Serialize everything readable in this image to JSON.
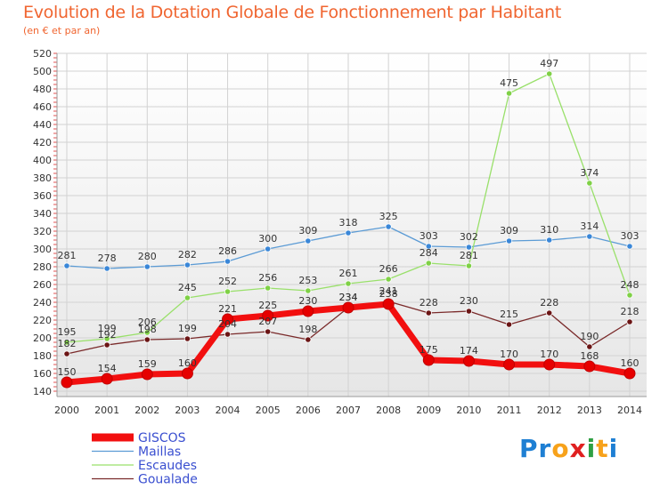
{
  "header": {
    "title": "Evolution de la Dotation Globale de Fonctionnement par Habitant",
    "subtitle": "(en € et par an)"
  },
  "logo": {
    "text": "Proxiti",
    "letters": [
      "P",
      "r",
      "o",
      "x",
      "i",
      "t",
      "i"
    ],
    "letter_colors": [
      "#1e7fd3",
      "#1e7fd3",
      "#f7a21b",
      "#e02020",
      "#2ea043",
      "#f7a21b",
      "#1e7fd3"
    ]
  },
  "chart_data": {
    "type": "line",
    "x": [
      "2000",
      "2001",
      "2002",
      "2003",
      "2004",
      "2005",
      "2006",
      "2007",
      "2008",
      "2009",
      "2010",
      "2011",
      "2012",
      "2013",
      "2014"
    ],
    "ylim": [
      140,
      520
    ],
    "yticks": [
      140,
      160,
      180,
      200,
      220,
      240,
      260,
      280,
      300,
      320,
      340,
      360,
      380,
      400,
      420,
      440,
      460,
      480,
      500,
      520
    ],
    "grid": true,
    "legend_position": "bottom-left",
    "series": [
      {
        "name": "Maillas",
        "color": "#5b9bd5",
        "marker": "#3a87d8",
        "values": [
          281,
          278,
          280,
          282,
          286,
          300,
          309,
          318,
          325,
          303,
          302,
          309,
          310,
          314,
          303
        ]
      },
      {
        "name": "Escaudes",
        "color": "#99e06a",
        "marker": "#7fd146",
        "values": [
          195,
          199,
          206,
          245,
          252,
          256,
          253,
          261,
          266,
          284,
          281,
          475,
          497,
          374,
          248
        ]
      },
      {
        "name": "Goualade",
        "color": "#7a2a2a",
        "marker": "#6b1515",
        "values": [
          182,
          192,
          198,
          199,
          204,
          207,
          198,
          234,
          241,
          228,
          230,
          215,
          228,
          190,
          218
        ]
      },
      {
        "name": "GISCOS",
        "color": "#f20f0f",
        "marker": "#e60000",
        "values": [
          150,
          154,
          159,
          160,
          221,
          225,
          230,
          234,
          238,
          175,
          174,
          170,
          170,
          168,
          160
        ]
      }
    ]
  }
}
